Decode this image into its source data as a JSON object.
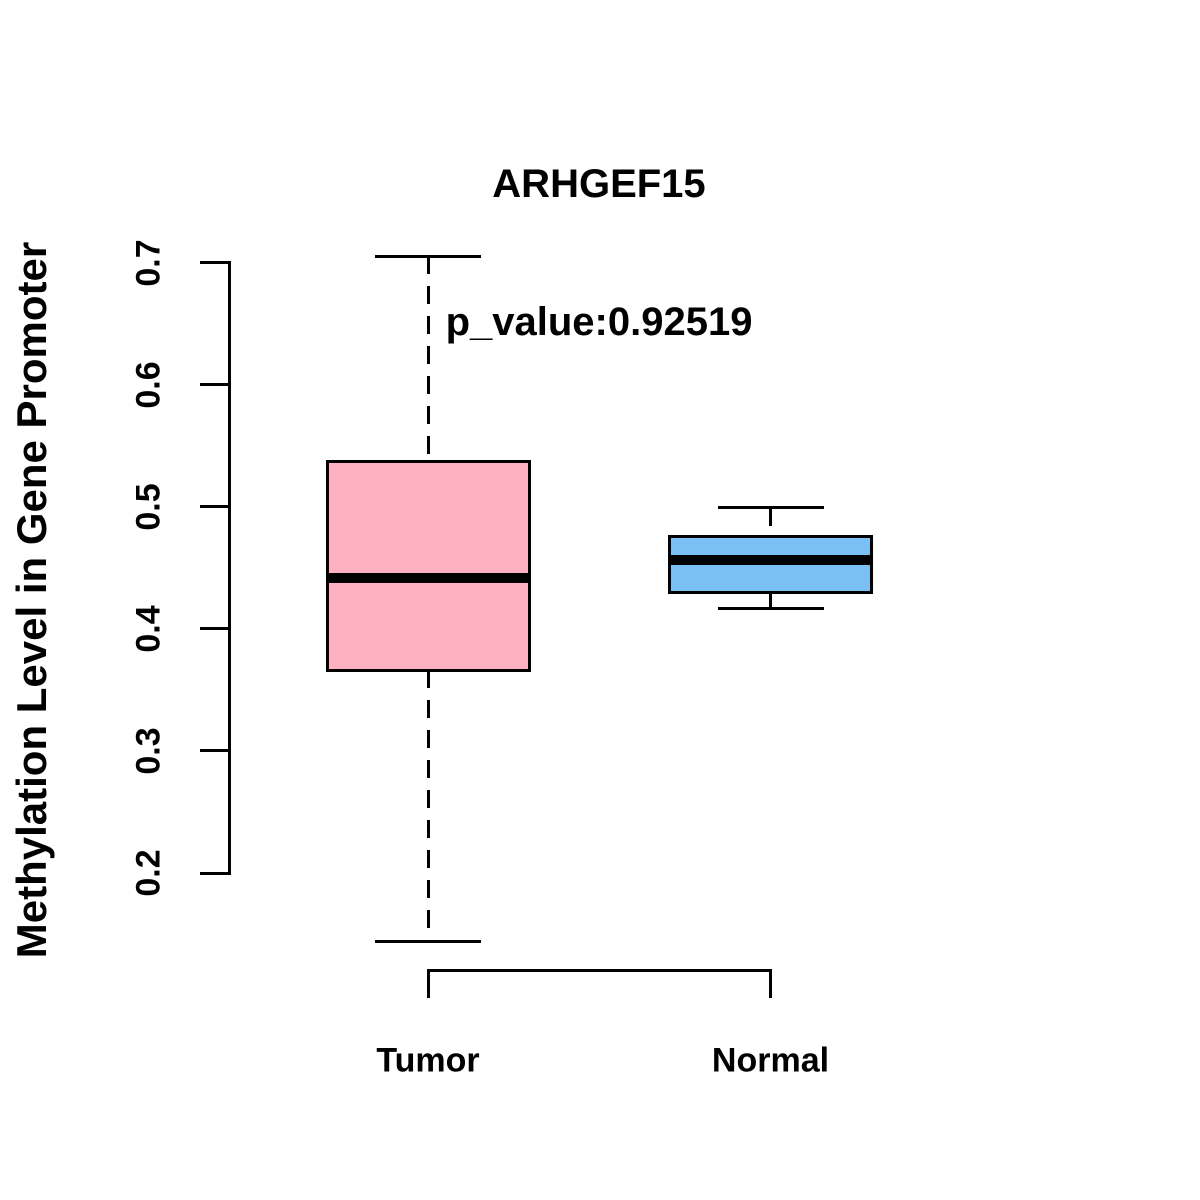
{
  "title": {
    "gene": "ARHGEF15",
    "p_value_line": "p_value:0.92519"
  },
  "chart_data": {
    "type": "boxplot",
    "title": "ARHGEF15",
    "subtitle": "p_value:0.92519",
    "xlabel": "",
    "ylabel": "Methylation Level in Gene Promoter",
    "ylim": [
      0.2,
      0.7
    ],
    "yticks": [
      0.2,
      0.3,
      0.4,
      0.5,
      0.6,
      0.7
    ],
    "ytick_decimals": 1,
    "grid": false,
    "legend": "none",
    "whisker_style": "dashed",
    "box_border_color": "#000000",
    "median_color": "#000000",
    "categories": [
      "Tumor",
      "Normal"
    ],
    "series": [
      {
        "name": "Tumor",
        "min": 0.144,
        "q1": 0.366,
        "median": 0.442,
        "q3": 0.537,
        "max": 0.705,
        "fill": "#FFB1C1"
      },
      {
        "name": "Normal",
        "min": 0.417,
        "q1": 0.43,
        "median": 0.456,
        "q3": 0.476,
        "max": 0.499,
        "fill": "#7AC0F5"
      }
    ]
  }
}
